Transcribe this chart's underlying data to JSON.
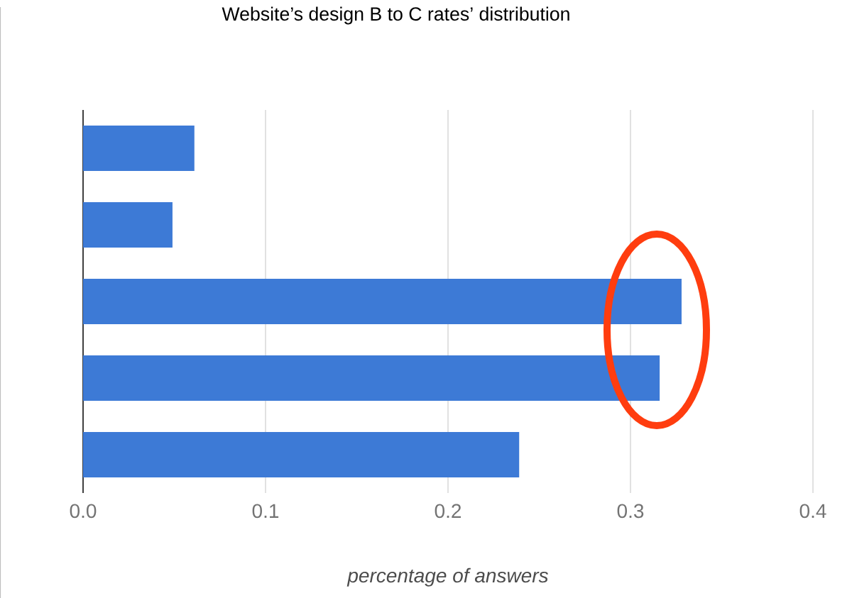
{
  "chart_data": {
    "type": "bar",
    "orientation": "horizontal",
    "title": "Website’s design B to C rates’ distribution",
    "xlabel": "percentage of answers",
    "categories": [
      null,
      null,
      null,
      null,
      null
    ],
    "values": [
      0.061,
      0.049,
      0.328,
      0.316,
      0.239
    ],
    "color": "#3d7ad6",
    "xlim": [
      0,
      0.4
    ],
    "xticks": [
      {
        "value": 0,
        "label": "0.0"
      },
      0.1,
      0.2,
      0.3,
      0.4
    ],
    "grid": "x"
  }
}
